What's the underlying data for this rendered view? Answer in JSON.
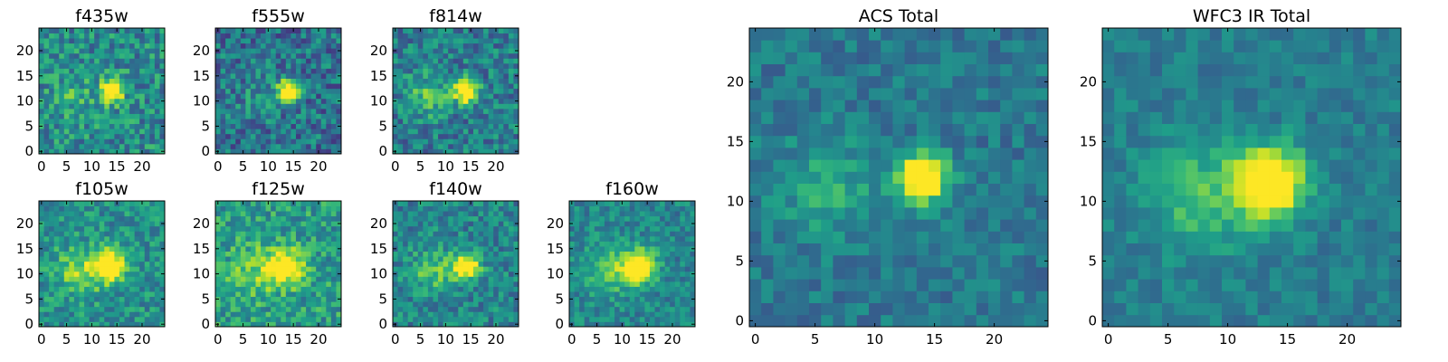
{
  "chart_data": [
    {
      "type": "heatmap",
      "title": "f435w",
      "colormap": "viridis",
      "grid_size": 25,
      "source": {
        "x": 14.5,
        "y": 12.5,
        "sigma": 1.5,
        "amp": 1.0
      },
      "background": 0.48,
      "noise": 0.22,
      "arm": {
        "amp": 0.15,
        "x": 7,
        "y": 11,
        "sigma": 3
      },
      "xticks": [
        0,
        5,
        10,
        15,
        20
      ],
      "yticks": [
        0,
        5,
        10,
        15,
        20
      ],
      "xlim": [
        0,
        25
      ],
      "ylim": [
        0,
        25
      ]
    },
    {
      "type": "heatmap",
      "title": "f555w",
      "colormap": "viridis",
      "grid_size": 25,
      "source": {
        "x": 14.5,
        "y": 12.5,
        "sigma": 1.5,
        "amp": 0.95
      },
      "background": 0.38,
      "noise": 0.22,
      "arm": {
        "amp": 0.12,
        "x": 8,
        "y": 11,
        "sigma": 3
      },
      "xticks": [
        0,
        5,
        10,
        15,
        20
      ],
      "yticks": [
        0,
        5,
        10,
        15,
        20
      ],
      "xlim": [
        0,
        25
      ],
      "ylim": [
        0,
        25
      ]
    },
    {
      "type": "heatmap",
      "title": "f814w",
      "colormap": "viridis",
      "grid_size": 25,
      "source": {
        "x": 14.5,
        "y": 12.5,
        "sigma": 1.6,
        "amp": 0.85
      },
      "background": 0.42,
      "noise": 0.2,
      "arm": {
        "amp": 0.3,
        "x": 7,
        "y": 11.5,
        "sigma": 3
      },
      "xticks": [
        0,
        5,
        10,
        15,
        20
      ],
      "yticks": [
        0,
        5,
        10,
        15,
        20
      ],
      "xlim": [
        0,
        25
      ],
      "ylim": [
        0,
        25
      ]
    },
    {
      "type": "heatmap",
      "title": "f105w",
      "colormap": "viridis",
      "grid_size": 25,
      "source": {
        "x": 14,
        "y": 12,
        "sigma": 2.2,
        "amp": 0.7
      },
      "background": 0.5,
      "noise": 0.18,
      "arm": {
        "amp": 0.3,
        "x": 8,
        "y": 11,
        "sigma": 3.5
      },
      "xticks": [
        0,
        5,
        10,
        15,
        20
      ],
      "yticks": [
        0,
        5,
        10,
        15,
        20
      ],
      "xlim": [
        0,
        25
      ],
      "ylim": [
        0,
        25
      ]
    },
    {
      "type": "heatmap",
      "title": "f125w",
      "colormap": "viridis",
      "grid_size": 25,
      "source": {
        "x": 14,
        "y": 12,
        "sigma": 2.5,
        "amp": 0.6
      },
      "background": 0.55,
      "noise": 0.2,
      "arm": {
        "amp": 0.25,
        "x": 8,
        "y": 11,
        "sigma": 3.5
      },
      "xticks": [
        0,
        5,
        10,
        15,
        20
      ],
      "yticks": [
        0,
        5,
        10,
        15,
        20
      ],
      "xlim": [
        0,
        25
      ],
      "ylim": [
        0,
        25
      ]
    },
    {
      "type": "heatmap",
      "title": "f140w",
      "colormap": "viridis",
      "grid_size": 25,
      "source": {
        "x": 14.5,
        "y": 12,
        "sigma": 1.8,
        "amp": 0.8
      },
      "background": 0.45,
      "noise": 0.18,
      "arm": {
        "amp": 0.3,
        "x": 8,
        "y": 11,
        "sigma": 3
      },
      "xticks": [
        0,
        5,
        10,
        15,
        20
      ],
      "yticks": [
        0,
        5,
        10,
        15,
        20
      ],
      "xlim": [
        0,
        25
      ],
      "ylim": [
        0,
        25
      ]
    },
    {
      "type": "heatmap",
      "title": "f160w",
      "colormap": "viridis",
      "grid_size": 25,
      "source": {
        "x": 14,
        "y": 12,
        "sigma": 2.2,
        "amp": 0.8
      },
      "background": 0.45,
      "noise": 0.15,
      "arm": {
        "amp": 0.3,
        "x": 8,
        "y": 11,
        "sigma": 3.5
      },
      "xticks": [
        0,
        5,
        10,
        15,
        20
      ],
      "yticks": [
        0,
        5,
        10,
        15,
        20
      ],
      "xlim": [
        0,
        25
      ],
      "ylim": [
        0,
        25
      ]
    },
    {
      "type": "heatmap",
      "title": "ACS Total",
      "colormap": "viridis",
      "grid_size": 25,
      "source": {
        "x": 14.5,
        "y": 12.5,
        "sigma": 1.4,
        "amp": 1.0
      },
      "background": 0.4,
      "noise": 0.12,
      "arm": {
        "amp": 0.22,
        "x": 6.5,
        "y": 11.5,
        "sigma": 2.8
      },
      "xticks": [
        0,
        5,
        10,
        15,
        20
      ],
      "yticks": [
        0,
        5,
        10,
        15,
        20
      ],
      "xlim": [
        0,
        25
      ],
      "ylim": [
        0,
        25
      ]
    },
    {
      "type": "heatmap",
      "title": "WFC3 IR Total",
      "colormap": "viridis",
      "grid_size": 25,
      "source": {
        "x": 14,
        "y": 12,
        "sigma": 2.0,
        "amp": 0.9
      },
      "background": 0.42,
      "noise": 0.1,
      "arm": {
        "amp": 0.28,
        "x": 8,
        "y": 11,
        "sigma": 3.2
      },
      "xticks": [
        0,
        5,
        10,
        15,
        20
      ],
      "yticks": [
        0,
        5,
        10,
        15,
        20
      ],
      "xlim": [
        0,
        25
      ],
      "ylim": [
        0,
        25
      ]
    }
  ]
}
